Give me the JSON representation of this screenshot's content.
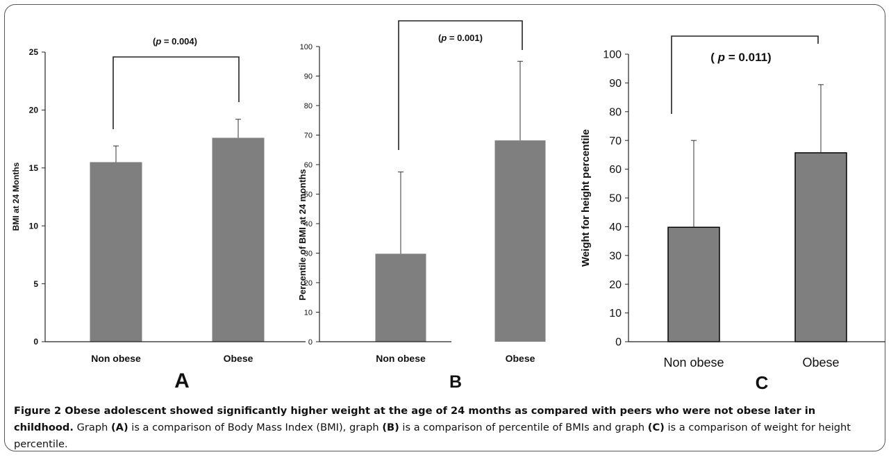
{
  "chart_data": [
    {
      "type": "bar",
      "panel_label": "A",
      "categories": [
        "Non obese",
        "Obese"
      ],
      "values": [
        15.5,
        17.6
      ],
      "error_upper": [
        16.9,
        19.2
      ],
      "ylabel": "BMI at 24 Months",
      "ylim": [
        0,
        25
      ],
      "yticks": [
        0,
        5,
        10,
        15,
        20,
        25
      ],
      "significance": "(p = 0.004)",
      "significance_p": "p",
      "significance_value": " = 0.004)",
      "grid": false,
      "bar_color": "#7f7f7f"
    },
    {
      "type": "bar",
      "panel_label": "B",
      "categories": [
        "Non obese",
        "Obese"
      ],
      "values": [
        29.8,
        68.2
      ],
      "error_upper": [
        57.5,
        95.0
      ],
      "ylabel": "Percentile of BMI at 24 months",
      "ylim": [
        0,
        100
      ],
      "yticks": [
        0,
        10,
        20,
        30,
        40,
        50,
        60,
        70,
        80,
        90,
        100
      ],
      "significance": "(p = 0.001)",
      "significance_p": "p",
      "significance_value": " = 0.001)",
      "grid": false,
      "bar_color": "#7f7f7f"
    },
    {
      "type": "bar",
      "panel_label": "C",
      "categories": [
        "Non obese",
        "Obese"
      ],
      "values": [
        39.8,
        65.7
      ],
      "error_upper": [
        70.0,
        89.4
      ],
      "ylabel": "Weight for height percentile",
      "ylim": [
        0,
        100
      ],
      "yticks": [
        0,
        10,
        20,
        30,
        40,
        50,
        60,
        70,
        80,
        90,
        100
      ],
      "significance": "( p = 0.011)",
      "significance_p": "p",
      "significance_value": " = 0.011)",
      "grid": false,
      "bar_color": "#7f7f7f"
    }
  ],
  "caption": {
    "title": "Figure 2 Obese adolescent showed significantly higher weight at the age of 24 months as compared with peers who were not obese later in childhood.",
    "part1": " Graph ",
    "labelA": "(A)",
    "part2": " is a comparison of Body Mass Index (BMI), graph ",
    "labelB": "(B)",
    "part3": " is a comparison of percentile of BMIs and graph ",
    "labelC": "(C)",
    "part4": " is a comparison of weight for height percentile."
  },
  "colors": {
    "bar": "#7f7f7f",
    "border": "#555555",
    "text": "#111111"
  }
}
